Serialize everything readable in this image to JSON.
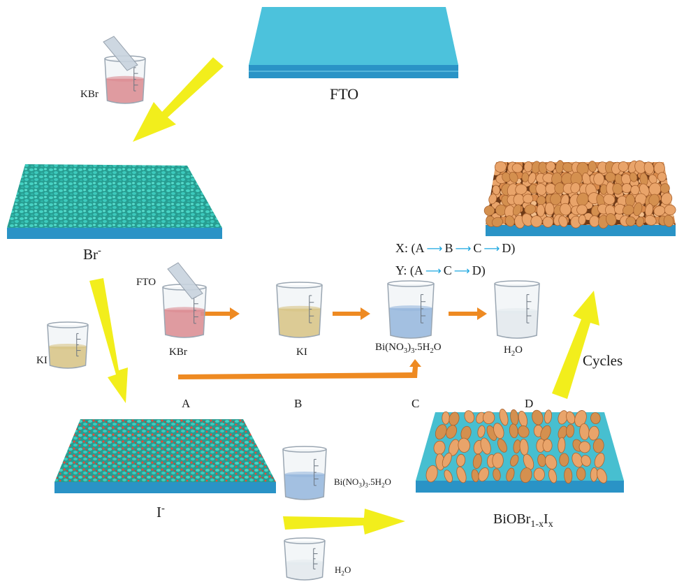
{
  "labels": {
    "fto_top": "FTO",
    "kbr_top": "KBr",
    "br_film": "Br",
    "br_film_sup": "-",
    "i_film": "I",
    "i_film_sup": "-",
    "ki_left": "KI",
    "fto_mid": "FTO",
    "kbr_mid": "KBr",
    "ki_mid": "KI",
    "bino3_mid": "Bi(NO3)3.5H2O",
    "h2o_mid": "H2O",
    "bino3_bottom": "Bi(NO3)3.5H2O",
    "h2o_bottom": "H2O",
    "product": "BiOBr1-xIx",
    "cycles": "Cycles"
  },
  "steps": {
    "a": "A",
    "b": "B",
    "c": "C",
    "d": "D"
  },
  "sequences": {
    "x": {
      "prefix": "X: (",
      "items": [
        "A",
        "B",
        "C",
        "D"
      ],
      "suffix": ")"
    },
    "y": {
      "prefix": "Y: (",
      "items": [
        "A",
        "C",
        "D"
      ],
      "suffix": ")"
    }
  },
  "colors": {
    "fto_top": "#4cc2dc",
    "fto_side": "#2a93c6",
    "crystal": "#35c5b7",
    "iodide_dot": "#e64a3c",
    "flake": "#e9a46a",
    "flake_dark": "#a8622f",
    "yellow_arrow": "#f2ee1c",
    "orange_arrow": "#ee8a22",
    "seq_arrow": "#1ea7e0",
    "kbr_liquid": "#dc5b62",
    "ki_liquid": "#d6b34e",
    "bino3_liquid": "#6f9fd6",
    "h2o_liquid": "#e8ecf0"
  }
}
